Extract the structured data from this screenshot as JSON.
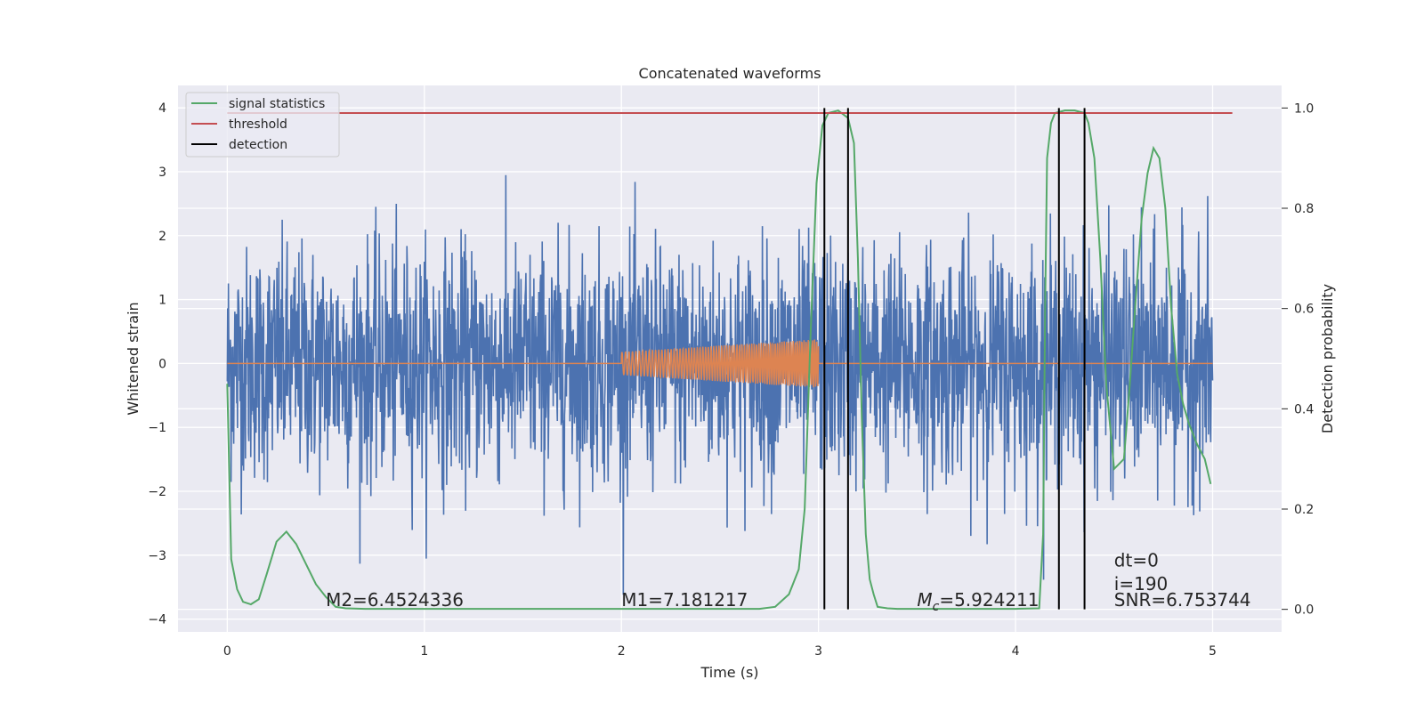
{
  "chart_data": {
    "type": "line",
    "title": "Concatenated waveforms",
    "xlabel": "Time (s)",
    "ylabel": "Whitened strain",
    "y2label": "Detection probability",
    "xlim": [
      -0.25,
      5.35
    ],
    "ylim": [
      -4.2,
      4.35
    ],
    "y2lim": [
      -0.045,
      1.045
    ],
    "xticks": [
      0,
      1,
      2,
      3,
      4,
      5
    ],
    "yticks": [
      -4,
      -3,
      -2,
      -1,
      0,
      1,
      2,
      3,
      4
    ],
    "y2ticks": [
      0.0,
      0.2,
      0.4,
      0.6,
      0.8,
      1.0
    ],
    "xtick_labels": [
      "0",
      "1",
      "2",
      "3",
      "4",
      "5"
    ],
    "ytick_labels": [
      "−4",
      "−3",
      "−2",
      "−1",
      "0",
      "1",
      "2",
      "3",
      "4"
    ],
    "y2tick_labels": [
      "0.0",
      "0.2",
      "0.4",
      "0.6",
      "0.8",
      "1.0"
    ],
    "grid": true,
    "legend_position": "top-left",
    "legend": [
      {
        "label": "signal statistics",
        "color": "#55a868"
      },
      {
        "label": "threshold",
        "color": "#c44e52"
      },
      {
        "label": "detection",
        "color": "#000000"
      }
    ],
    "series": [
      {
        "name": "signal statistics",
        "axis": "right",
        "color": "#55a868",
        "x": [
          0.0,
          0.02,
          0.05,
          0.08,
          0.12,
          0.16,
          0.2,
          0.25,
          0.3,
          0.35,
          0.4,
          0.45,
          0.5,
          0.55,
          0.6,
          0.7,
          1.0,
          2.0,
          2.7,
          2.78,
          2.85,
          2.9,
          2.93,
          2.96,
          2.99,
          3.02,
          3.05,
          3.1,
          3.15,
          3.18,
          3.2,
          3.22,
          3.24,
          3.26,
          3.28,
          3.3,
          3.35,
          3.4,
          4.0,
          4.12,
          4.14,
          4.15,
          4.16,
          4.18,
          4.2,
          4.25,
          4.3,
          4.35,
          4.37,
          4.4,
          4.43,
          4.46,
          4.5,
          4.55,
          4.58,
          4.61,
          4.64,
          4.67,
          4.7,
          4.73,
          4.76,
          4.79,
          4.82,
          4.85,
          4.88,
          4.92,
          4.96,
          4.99
        ],
        "y": [
          0.45,
          0.1,
          0.04,
          0.015,
          0.01,
          0.02,
          0.07,
          0.135,
          0.155,
          0.13,
          0.09,
          0.05,
          0.025,
          0.005,
          0.002,
          0.001,
          0.001,
          0.001,
          0.001,
          0.005,
          0.03,
          0.08,
          0.2,
          0.55,
          0.85,
          0.965,
          0.99,
          0.995,
          0.98,
          0.93,
          0.7,
          0.38,
          0.15,
          0.06,
          0.03,
          0.005,
          0.002,
          0.001,
          0.001,
          0.002,
          0.15,
          0.6,
          0.9,
          0.97,
          0.99,
          0.995,
          0.995,
          0.99,
          0.97,
          0.9,
          0.7,
          0.45,
          0.28,
          0.3,
          0.45,
          0.62,
          0.78,
          0.87,
          0.92,
          0.9,
          0.8,
          0.6,
          0.47,
          0.41,
          0.37,
          0.33,
          0.3,
          0.25
        ]
      },
      {
        "name": "threshold",
        "axis": "right",
        "color": "#c44e52",
        "x": [
          0.0,
          5.1
        ],
        "y": [
          0.99,
          0.99
        ]
      },
      {
        "name": "detection",
        "axis": "right",
        "color": "#000000",
        "type": "vlines",
        "x": [
          3.03,
          3.15,
          4.22,
          4.35
        ],
        "y_range": [
          0.0,
          1.0
        ]
      },
      {
        "name": "",
        "axis": "left",
        "color": "#4c72b0",
        "kind": "noise",
        "x_range": [
          0.0,
          5.0
        ],
        "envelope": 0.9,
        "max_abs": 4.0
      },
      {
        "name": "",
        "axis": "left",
        "color": "#dd8452",
        "kind": "chirp",
        "x_range": [
          2.0,
          3.0
        ],
        "amplitude_range": [
          0.18,
          0.38
        ],
        "baseline": 0.0
      }
    ],
    "annotations": [
      {
        "text": "M2=6.4524336",
        "x": 0.5,
        "y": -3.7
      },
      {
        "text": "M1=7.181217",
        "x": 2.0,
        "y": -3.7
      },
      {
        "text": "=5.924211",
        "symbol": "M",
        "subscript": "c",
        "x": 3.5,
        "y": -3.7
      },
      {
        "text": "dt=0",
        "x": 4.5,
        "y": -3.08
      },
      {
        "text": "i=190",
        "x": 4.5,
        "y": -3.45
      },
      {
        "text": "SNR=6.753744",
        "x": 4.5,
        "y": -3.7
      }
    ]
  },
  "colors": {
    "plot_bg": "#eaeaf2",
    "grid": "#ffffff",
    "strain": "#4c72b0",
    "injection": "#dd8452"
  }
}
